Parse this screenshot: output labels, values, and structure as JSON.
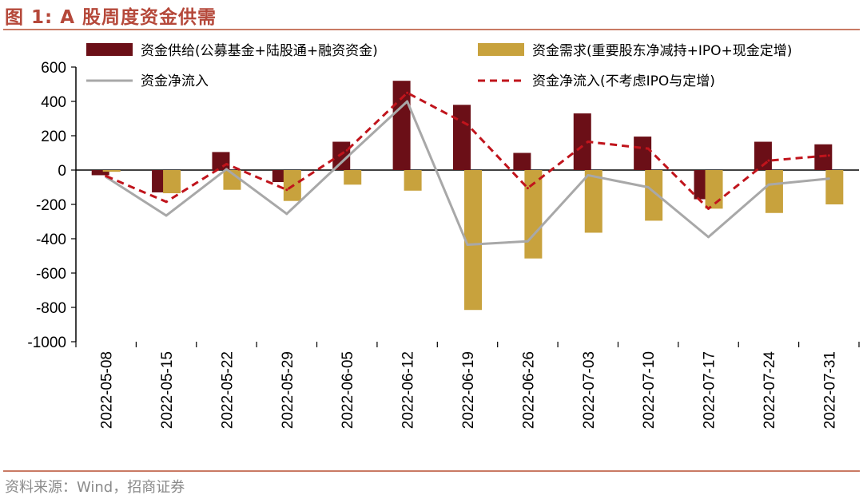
{
  "header": {
    "title": "图 1:  A 股周度资金供需"
  },
  "footer": {
    "source": "资料来源：Wind，招商证券"
  },
  "colors": {
    "supply": "#6b0f17",
    "demand": "#c8a23d",
    "net": "#a8a8a8",
    "net_ex": "#c0141c",
    "title": "#b5483a"
  },
  "chart_data": {
    "type": "bar",
    "title": "A 股周度资金供需",
    "ylim": [
      -1000,
      600
    ],
    "yticks": [
      600,
      400,
      200,
      0,
      -200,
      -400,
      -600,
      -800,
      -1000
    ],
    "categories": [
      "2022-05-08",
      "2022-05-15",
      "2022-05-22",
      "2022-05-29",
      "2022-06-05",
      "2022-06-12",
      "2022-06-19",
      "2022-06-26",
      "2022-07-03",
      "2022-07-10",
      "2022-07-17",
      "2022-07-24",
      "2022-07-31"
    ],
    "series": [
      {
        "name": "资金供给(公募基金+陆股通+融资资金)",
        "kind": "bar",
        "color": "#6b0f17",
        "values": [
          -30,
          -130,
          105,
          -70,
          165,
          520,
          380,
          100,
          330,
          195,
          -170,
          165,
          150
        ]
      },
      {
        "name": "资金需求(重要股东净减持+IPO+现金定增)",
        "kind": "bar",
        "color": "#c8a23d",
        "values": [
          -10,
          -135,
          -115,
          -180,
          -85,
          -120,
          -815,
          -515,
          -365,
          -295,
          -225,
          -250,
          -200
        ]
      },
      {
        "name": "资金净流入",
        "kind": "line",
        "color": "#a8a8a8",
        "values": [
          -40,
          -265,
          5,
          -255,
          75,
          400,
          -435,
          -415,
          -30,
          -100,
          -390,
          -85,
          -50
        ]
      },
      {
        "name": "资金净流入(不考虑IPO与定增)",
        "kind": "dashed",
        "color": "#c0141c",
        "values": [
          -35,
          -185,
          35,
          -115,
          115,
          450,
          265,
          -105,
          165,
          125,
          -225,
          55,
          85
        ]
      }
    ]
  }
}
